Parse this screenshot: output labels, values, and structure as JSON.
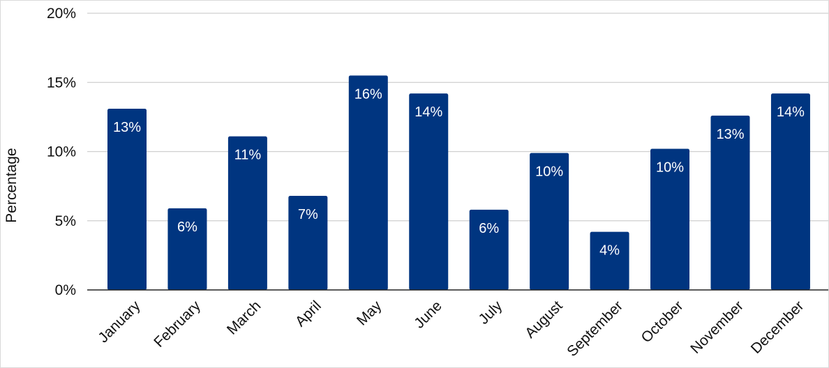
{
  "chart_data": {
    "type": "bar",
    "title": "",
    "xlabel": "",
    "ylabel": "Percentage",
    "categories": [
      "January",
      "February",
      "March",
      "April",
      "May",
      "June",
      "July",
      "August",
      "September",
      "October",
      "November",
      "December"
    ],
    "values": [
      13.1,
      5.9,
      11.1,
      6.8,
      15.5,
      14.2,
      5.8,
      9.9,
      4.2,
      10.2,
      12.6,
      14.2
    ],
    "value_labels": [
      "13%",
      "6%",
      "11%",
      "7%",
      "16%",
      "14%",
      "6%",
      "10%",
      "4%",
      "10%",
      "13%",
      "14%"
    ],
    "ylim": [
      0,
      20
    ],
    "yticks": [
      0,
      5,
      10,
      15,
      20
    ],
    "ytick_labels": [
      "0%",
      "5%",
      "10%",
      "15%",
      "20%"
    ],
    "grid": true,
    "legend": "none",
    "bar_color": "#003580",
    "grid_color": "#cfcfcf",
    "axis_color": "#222222",
    "label_color": "#ffffff"
  }
}
